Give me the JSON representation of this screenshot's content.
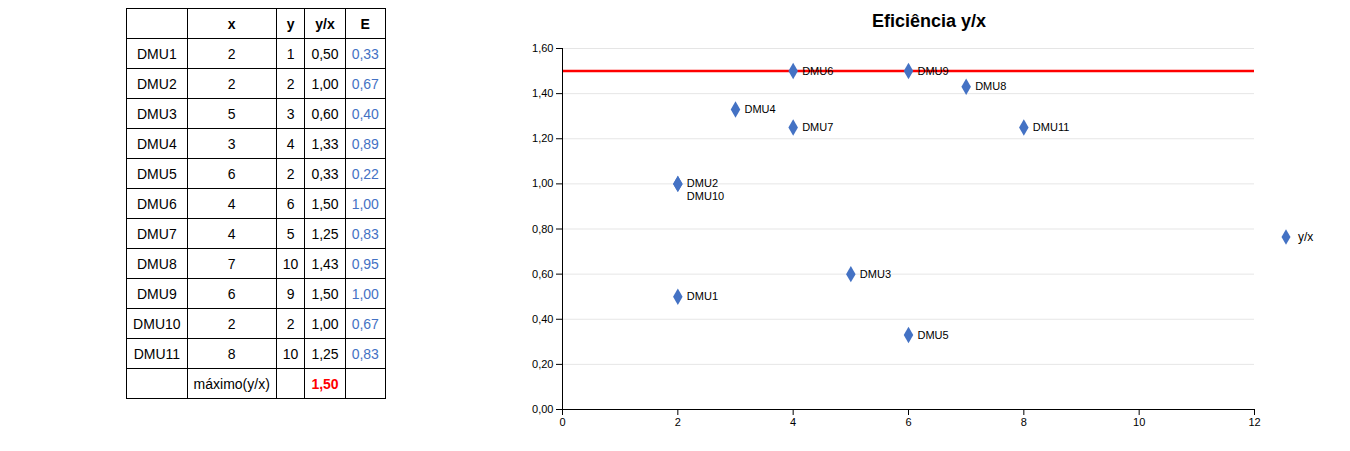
{
  "chart_data": [
    {
      "type": "table",
      "columns": [
        "",
        "x",
        "y",
        "y/x",
        "E"
      ],
      "rows": [
        [
          "DMU1",
          "2",
          "1",
          "0,50",
          "0,33"
        ],
        [
          "DMU2",
          "2",
          "2",
          "1,00",
          "0,67"
        ],
        [
          "DMU3",
          "5",
          "3",
          "0,60",
          "0,40"
        ],
        [
          "DMU4",
          "3",
          "4",
          "1,33",
          "0,89"
        ],
        [
          "DMU5",
          "6",
          "2",
          "0,33",
          "0,22"
        ],
        [
          "DMU6",
          "4",
          "6",
          "1,50",
          "1,00"
        ],
        [
          "DMU7",
          "4",
          "5",
          "1,25",
          "0,83"
        ],
        [
          "DMU8",
          "7",
          "10",
          "1,43",
          "0,95"
        ],
        [
          "DMU9",
          "6",
          "9",
          "1,50",
          "1,00"
        ],
        [
          "DMU10",
          "2",
          "2",
          "1,00",
          "0,67"
        ],
        [
          "DMU11",
          "8",
          "10",
          "1,25",
          "0,83"
        ]
      ],
      "footer": [
        "",
        "máximo(y/x)",
        "",
        "1,50",
        ""
      ],
      "color": "#4472C4",
      "footer_color": "red"
    },
    {
      "type": "scatter",
      "title": "Eficiência y/x",
      "xlim": [
        0,
        12
      ],
      "xticks": [
        0,
        2,
        4,
        6,
        8,
        10,
        12
      ],
      "ylim": [
        0,
        1.6
      ],
      "yticks": [
        {
          "value": 0,
          "label": "0,00"
        },
        {
          "value": 0.2,
          "label": "0,20"
        },
        {
          "value": 0.4,
          "label": "0,40"
        },
        {
          "value": 0.6,
          "label": "0,60"
        },
        {
          "value": 0.8,
          "label": "0,80"
        },
        {
          "value": 1.0,
          "label": "1,00"
        },
        {
          "value": 1.2,
          "label": "1,20"
        },
        {
          "value": 1.4,
          "label": "1,40"
        },
        {
          "value": 1.6,
          "label": "1,60"
        }
      ],
      "grid": "y",
      "legend": "right",
      "series": [
        {
          "name": "y/x",
          "color": "#4472C4",
          "marker": "diamond",
          "x": [
            2,
            2,
            5,
            3,
            6,
            4,
            4,
            7,
            6,
            2,
            8
          ],
          "values": [
            0.5,
            1.0,
            0.6,
            1.33,
            0.33,
            1.5,
            1.25,
            1.43,
            1.5,
            1.0,
            1.25
          ],
          "labels": [
            "DMU1",
            "DMU2",
            "DMU3",
            "DMU4",
            "DMU5",
            "DMU6",
            "DMU7",
            "DMU8",
            "DMU9",
            "DMU10",
            "DMU11"
          ]
        }
      ],
      "lines": [
        {
          "y": 1.5,
          "color": "red"
        }
      ]
    }
  ]
}
